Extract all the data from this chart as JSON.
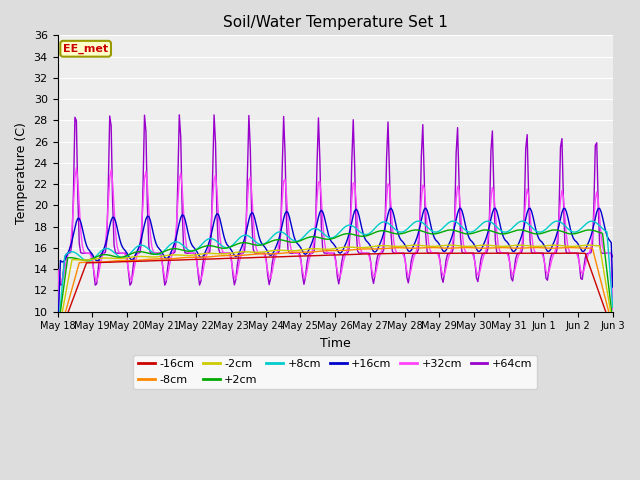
{
  "title": "Soil/Water Temperature Set 1",
  "xlabel": "Time",
  "ylabel": "Temperature (C)",
  "ylim": [
    10,
    36
  ],
  "yticks": [
    10,
    12,
    14,
    16,
    18,
    20,
    22,
    24,
    26,
    28,
    30,
    32,
    34,
    36
  ],
  "bg_color": "#dddddd",
  "plot_bg_color": "#eeeeee",
  "annotation_text": "EE_met",
  "annotation_fg": "#cc0000",
  "annotation_bg": "#ffffcc",
  "annotation_border": "#999900",
  "legend_entries": [
    "-16cm",
    "-8cm",
    "-2cm",
    "+2cm",
    "+8cm",
    "+16cm",
    "+32cm",
    "+64cm"
  ],
  "line_colors": [
    "#cc0000",
    "#ff8800",
    "#cccc00",
    "#00aa00",
    "#00cccc",
    "#0000cc",
    "#ff44ff",
    "#9900cc"
  ],
  "num_days": 16,
  "num_points_per_day": 24
}
